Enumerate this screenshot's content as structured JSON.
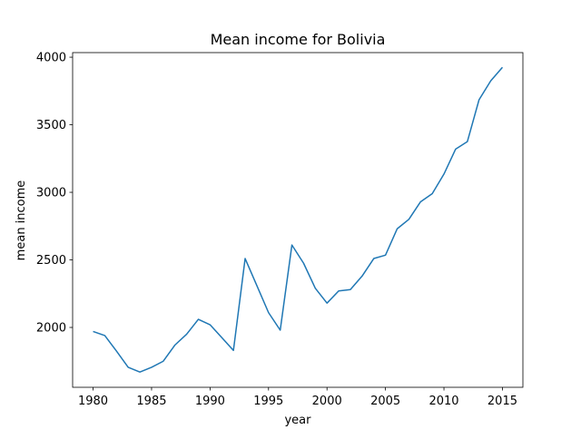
{
  "chart_data": {
    "type": "line",
    "title": "Mean income for Bolivia",
    "x_label": "year",
    "y_label": "mean income",
    "x": [
      1980,
      1981,
      1982,
      1983,
      1984,
      1985,
      1986,
      1987,
      1988,
      1989,
      1990,
      1991,
      1992,
      1993,
      1994,
      1995,
      1996,
      1997,
      1998,
      1999,
      2000,
      2001,
      2002,
      2003,
      2004,
      2005,
      2006,
      2007,
      2008,
      2009,
      2010,
      2011,
      2012,
      2013,
      2014,
      2015
    ],
    "series": [
      {
        "name": "mean income",
        "color": "#1f77b4",
        "values": [
          1970,
          1940,
          1825,
          1705,
          1670,
          1705,
          1750,
          1870,
          1950,
          2060,
          2020,
          1925,
          1830,
          2510,
          2310,
          2110,
          1980,
          2610,
          2475,
          2290,
          2180,
          2270,
          2280,
          2380,
          2510,
          2535,
          2730,
          2800,
          2930,
          2990,
          3135,
          3320,
          3375,
          3685,
          3825,
          3925
        ]
      }
    ],
    "xlim": [
      1978.25,
      2016.75
    ],
    "xticks": [
      1980,
      1985,
      1990,
      1995,
      2000,
      2005,
      2010,
      2015
    ],
    "ylim": [
      1557,
      4034
    ],
    "yticks": [
      2000,
      2500,
      3000,
      3500,
      4000
    ],
    "grid": false
  }
}
